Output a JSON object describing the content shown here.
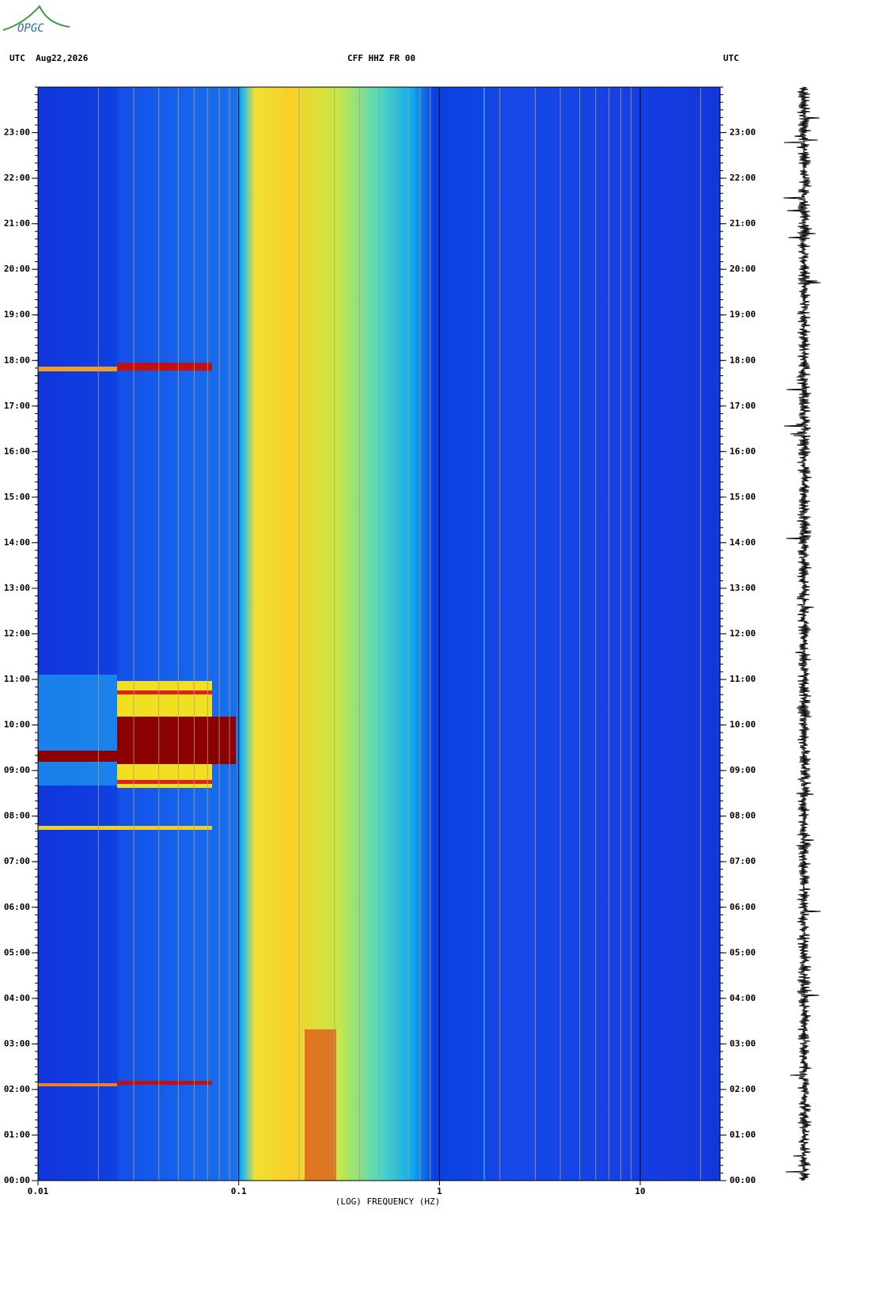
{
  "chart_data": {
    "type": "spectrogram",
    "logo": "OPGC",
    "header_left": "UTC  Aug22,2026",
    "title": "CFF HHZ FR 00",
    "header_right": "UTC",
    "x_label": "(LOG) FREQUENCY (HZ)",
    "x_log": true,
    "xlim": [
      0.01,
      25
    ],
    "xticks": [
      0.01,
      0.1,
      1,
      10
    ],
    "ylim": [
      0,
      24
    ],
    "yticks": [
      {
        "value": 0,
        "label": "00:00"
      },
      {
        "value": 1,
        "label": "01:00"
      },
      {
        "value": 2,
        "label": "02:00"
      },
      {
        "value": 3,
        "label": "03:00"
      },
      {
        "value": 4,
        "label": "04:00"
      },
      {
        "value": 5,
        "label": "05:00"
      },
      {
        "value": 6,
        "label": "06:00"
      },
      {
        "value": 7,
        "label": "07:00"
      },
      {
        "value": 8,
        "label": "08:00"
      },
      {
        "value": 9,
        "label": "09:00"
      },
      {
        "value": 10,
        "label": "10:00"
      },
      {
        "value": 11,
        "label": "11:00"
      },
      {
        "value": 12,
        "label": "12:00"
      },
      {
        "value": 13,
        "label": "13:00"
      },
      {
        "value": 14,
        "label": "14:00"
      },
      {
        "value": 15,
        "label": "15:00"
      },
      {
        "value": 16,
        "label": "16:00"
      },
      {
        "value": 17,
        "label": "17:00"
      },
      {
        "value": 18,
        "label": "18:00"
      },
      {
        "value": 19,
        "label": "19:00"
      },
      {
        "value": 20,
        "label": "20:00"
      },
      {
        "value": 21,
        "label": "21:00"
      },
      {
        "value": 22,
        "label": "22:00"
      },
      {
        "value": 23,
        "label": "23:00"
      }
    ],
    "grid": true
  }
}
